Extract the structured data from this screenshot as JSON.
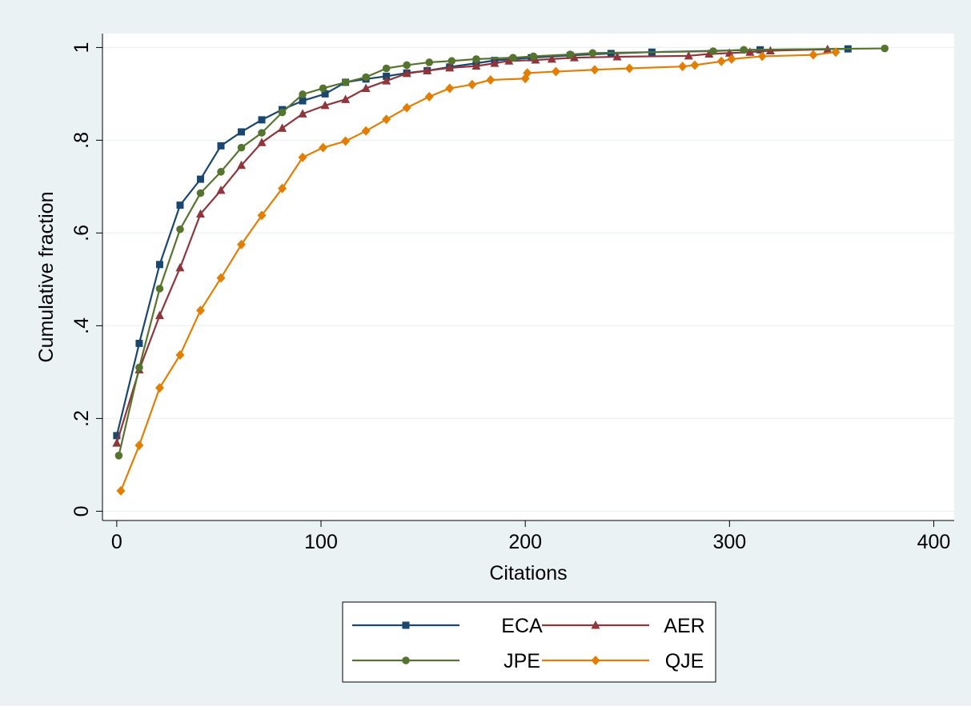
{
  "chart_data": {
    "type": "line",
    "title": "",
    "xlabel": "Citations",
    "ylabel": "Cumulative fraction",
    "xlim": [
      -7,
      410
    ],
    "ylim": [
      -0.02,
      1.03
    ],
    "xticks": [
      0,
      100,
      200,
      300,
      400
    ],
    "xtick_labels": [
      "0",
      "100",
      "200",
      "300",
      "400"
    ],
    "yticks": [
      0,
      0.2,
      0.4,
      0.6,
      0.8,
      1
    ],
    "ytick_labels": [
      "0",
      ".2",
      ".4",
      ".6",
      ".8",
      "1"
    ],
    "grid": "horizontal",
    "legend_position": "bottom",
    "colors": {
      "outer_background": "#eaf2f3",
      "plot_background": "#ffffff",
      "grid": "#eaf2f3"
    },
    "series": [
      {
        "name": "ECA",
        "color": "#1a476f",
        "marker": "square",
        "x": [
          0,
          11,
          21,
          31,
          41,
          51,
          61,
          71,
          81,
          91,
          102,
          112,
          122,
          132,
          142,
          152,
          163,
          176,
          185,
          203,
          222,
          242,
          262,
          315,
          358
        ],
        "y": [
          0.163,
          0.362,
          0.532,
          0.66,
          0.716,
          0.788,
          0.818,
          0.844,
          0.866,
          0.885,
          0.9,
          0.925,
          0.932,
          0.938,
          0.945,
          0.95,
          0.958,
          0.966,
          0.972,
          0.978,
          0.983,
          0.987,
          0.99,
          0.995,
          0.997
        ]
      },
      {
        "name": "AER",
        "color": "#90353b",
        "marker": "triangle",
        "x": [
          0,
          11,
          21,
          31,
          41,
          51,
          61,
          71,
          81,
          91,
          102,
          112,
          122,
          132,
          142,
          152,
          163,
          176,
          185,
          192,
          205,
          213,
          224,
          245,
          280,
          290,
          300,
          310,
          320,
          348
        ],
        "y": [
          0.147,
          0.305,
          0.422,
          0.525,
          0.641,
          0.692,
          0.746,
          0.795,
          0.826,
          0.857,
          0.875,
          0.888,
          0.912,
          0.928,
          0.944,
          0.95,
          0.956,
          0.96,
          0.966,
          0.971,
          0.973,
          0.975,
          0.978,
          0.98,
          0.982,
          0.986,
          0.988,
          0.99,
          0.993,
          0.996
        ]
      },
      {
        "name": "JPE",
        "color": "#55752f",
        "marker": "circle",
        "x": [
          1,
          11,
          21,
          31,
          41,
          51,
          61,
          71,
          81,
          91,
          101,
          112,
          122,
          132,
          142,
          153,
          164,
          176,
          194,
          204,
          222,
          233,
          292,
          307,
          376
        ],
        "y": [
          0.12,
          0.31,
          0.48,
          0.608,
          0.686,
          0.732,
          0.784,
          0.816,
          0.86,
          0.899,
          0.912,
          0.925,
          0.936,
          0.955,
          0.962,
          0.968,
          0.971,
          0.975,
          0.978,
          0.981,
          0.985,
          0.988,
          0.992,
          0.995,
          0.998
        ]
      },
      {
        "name": "QJE",
        "color": "#e37e00",
        "marker": "diamond",
        "x": [
          2,
          11,
          21,
          31,
          41,
          51,
          61,
          71,
          81,
          91,
          101,
          112,
          122,
          132,
          142,
          153,
          163,
          174,
          183,
          200,
          201,
          215,
          234,
          251,
          277,
          283,
          296,
          301,
          316,
          341,
          352
        ],
        "y": [
          0.044,
          0.142,
          0.266,
          0.337,
          0.433,
          0.503,
          0.575,
          0.638,
          0.696,
          0.763,
          0.784,
          0.798,
          0.82,
          0.845,
          0.87,
          0.894,
          0.912,
          0.92,
          0.93,
          0.933,
          0.945,
          0.948,
          0.952,
          0.955,
          0.959,
          0.962,
          0.97,
          0.975,
          0.981,
          0.984,
          0.99
        ]
      }
    ]
  }
}
